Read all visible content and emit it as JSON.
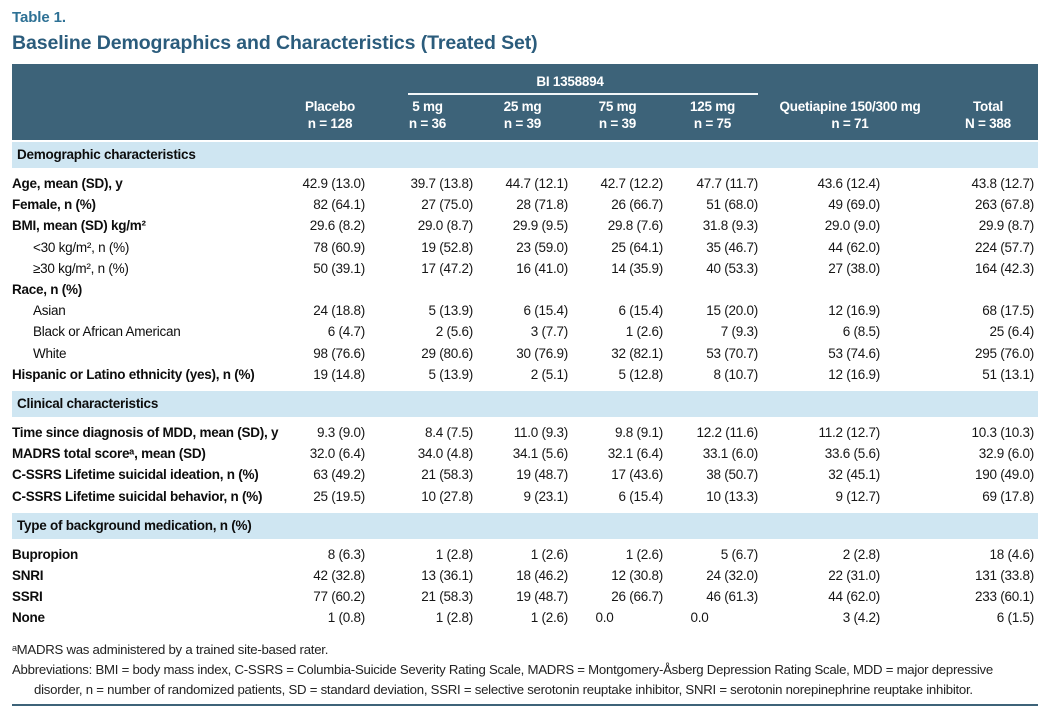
{
  "page": {
    "eyebrow": "Table 1.",
    "title": "Baseline Demographics and Characteristics (Treated Set)"
  },
  "colors": {
    "header_background": "#3d6379",
    "section_bar_background": "#cfe6f2",
    "eyebrow_accent": "#2e7195",
    "title_color": "#2b5c7c"
  },
  "table": {
    "group_header": "BI 1358894",
    "columns": [
      {
        "line1": "Placebo",
        "line2": "n = 128"
      },
      {
        "line1": "5 mg",
        "line2": "n = 36"
      },
      {
        "line1": "25 mg",
        "line2": "n = 39"
      },
      {
        "line1": "75 mg",
        "line2": "n = 39"
      },
      {
        "line1": "125 mg",
        "line2": "n = 75"
      },
      {
        "line1": "Quetiapine 150/300 mg",
        "line2": "n = 71"
      },
      {
        "line1": "Total",
        "line2": "N = 388"
      }
    ],
    "sections": [
      {
        "header": "Demographic characteristics",
        "rows": [
          {
            "label": "Age, mean (SD), y",
            "style": "main",
            "values": [
              "42.9 (13.0)",
              "39.7 (13.8)",
              "44.7 (12.1)",
              "42.7 (12.2)",
              "47.7 (11.7)",
              "43.6 (12.4)",
              "43.8 (12.7)"
            ]
          },
          {
            "label": "Female, n (%)",
            "style": "main",
            "values": [
              "82 (64.1)",
              "27 (75.0)",
              "28 (71.8)",
              "26 (66.7)",
              "51 (68.0)",
              "49 (69.0)",
              "263 (67.8)"
            ]
          },
          {
            "label": "BMI, mean (SD) kg/m²",
            "style": "main",
            "values": [
              "29.6 (8.2)",
              "29.0 (8.7)",
              "29.9 (9.5)",
              "29.8 (7.6)",
              "31.8 (9.3)",
              "29.0 (9.0)",
              "29.9 (8.7)"
            ]
          },
          {
            "label": "<30 kg/m², n (%)",
            "style": "sub",
            "values": [
              "78 (60.9)",
              "19 (52.8)",
              "23 (59.0)",
              "25 (64.1)",
              "35 (46.7)",
              "44 (62.0)",
              "224 (57.7)"
            ]
          },
          {
            "label": "≥30 kg/m², n (%)",
            "style": "sub",
            "values": [
              "50 (39.1)",
              "17 (47.2)",
              "16 (41.0)",
              "14 (35.9)",
              "40 (53.3)",
              "27 (38.0)",
              "164 (42.3)"
            ]
          },
          {
            "label": "Race, n (%)",
            "style": "main",
            "values": [
              "",
              "",
              "",
              "",
              "",
              "",
              ""
            ]
          },
          {
            "label": "Asian",
            "style": "sub",
            "values": [
              "24 (18.8)",
              "5 (13.9)",
              "6 (15.4)",
              "6 (15.4)",
              "15 (20.0)",
              "12 (16.9)",
              "68 (17.5)"
            ]
          },
          {
            "label": "Black or African American",
            "style": "sub",
            "values": [
              "6 (4.7)",
              "2 (5.6)",
              "3 (7.7)",
              "1 (2.6)",
              "7 (9.3)",
              "6 (8.5)",
              "25 (6.4)"
            ]
          },
          {
            "label": "White",
            "style": "sub",
            "values": [
              "98 (76.6)",
              "29 (80.6)",
              "30 (76.9)",
              "32 (82.1)",
              "53 (70.7)",
              "53 (74.6)",
              "295 (76.0)"
            ]
          },
          {
            "label": "Hispanic or Latino ethnicity (yes), n (%)",
            "style": "main",
            "values": [
              "19 (14.8)",
              "5 (13.9)",
              "2 (5.1)",
              "5 (12.8)",
              "8 (10.7)",
              "12 (16.9)",
              "51 (13.1)"
            ]
          }
        ]
      },
      {
        "header": "Clinical characteristics",
        "rows": [
          {
            "label": "Time since diagnosis of MDD, mean (SD), y",
            "style": "main",
            "values": [
              "9.3 (9.0)",
              "8.4 (7.5)",
              "11.0 (9.3)",
              "9.8 (9.1)",
              "12.2 (11.6)",
              "11.2 (12.7)",
              "10.3 (10.3)"
            ]
          },
          {
            "label": "MADRS total scoreᵃ, mean (SD)",
            "style": "main",
            "values": [
              "32.0 (6.4)",
              "34.0 (4.8)",
              "34.1 (5.6)",
              "32.1 (6.4)",
              "33.1 (6.0)",
              "33.6 (5.6)",
              "32.9 (6.0)"
            ]
          },
          {
            "label": "C-SSRS Lifetime suicidal ideation, n (%)",
            "style": "main",
            "values": [
              "63 (49.2)",
              "21 (58.3)",
              "19 (48.7)",
              "17 (43.6)",
              "38 (50.7)",
              "32 (45.1)",
              "190 (49.0)"
            ]
          },
          {
            "label": "C-SSRS Lifetime suicidal behavior, n (%)",
            "style": "main",
            "values": [
              "25 (19.5)",
              "10 (27.8)",
              "9 (23.1)",
              "6 (15.4)",
              "10 (13.3)",
              "9 (12.7)",
              "69 (17.8)"
            ]
          }
        ]
      },
      {
        "header": "Type of background medication, n (%)",
        "rows": [
          {
            "label": "Bupropion",
            "style": "main",
            "values": [
              "8 (6.3)",
              "1 (2.8)",
              "1 (2.6)",
              "1 (2.6)",
              "5 (6.7)",
              "2 (2.8)",
              "18 (4.6)"
            ]
          },
          {
            "label": "SNRI",
            "style": "main",
            "values": [
              "42 (32.8)",
              "13 (36.1)",
              "18 (46.2)",
              "12 (30.8)",
              "24 (32.0)",
              "22 (31.0)",
              "131 (33.8)"
            ]
          },
          {
            "label": "SSRI",
            "style": "main",
            "values": [
              "77 (60.2)",
              "21 (58.3)",
              "19 (48.7)",
              "26 (66.7)",
              "46 (61.3)",
              "44 (62.0)",
              "233 (60.1)"
            ]
          },
          {
            "label": "None",
            "style": "main",
            "values": [
              "1 (0.8)",
              "1 (2.8)",
              "1 (2.6)",
              "0.0",
              "0.0",
              "3 (4.2)",
              "6 (1.5)"
            ]
          }
        ]
      }
    ]
  },
  "footnotes": {
    "note_a": "ᵃMADRS was administered by a trained site-based rater.",
    "abbreviations": "Abbreviations: BMI = body mass index, C-SSRS = Columbia-Suicide Severity Rating Scale, MADRS = Montgomery-Åsberg Depression Rating Scale, MDD = major depressive disorder, n = number of randomized patients, SD = standard deviation, SSRI = selective serotonin reuptake inhibitor, SNRI = serotonin norepinephrine reuptake inhibitor."
  }
}
